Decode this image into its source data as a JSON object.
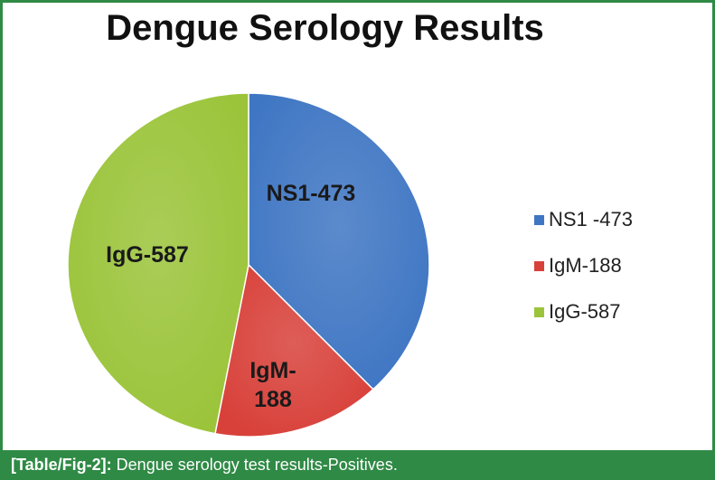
{
  "chart_data": {
    "type": "pie",
    "title": "Dengue Serology Results",
    "categories": [
      "NS1 -473",
      "IgM-188",
      "IgG-587"
    ],
    "values": [
      473,
      188,
      587
    ],
    "slice_labels": [
      "NS1-473",
      "IgM-\n188",
      "IgG-587"
    ],
    "colors": [
      "#3f76c3",
      "#d8413a",
      "#9bc43a"
    ],
    "legend_position": "right"
  },
  "caption": {
    "label": "[Table/Fig-2]:",
    "text": "Dengue serology test results-Positives."
  }
}
